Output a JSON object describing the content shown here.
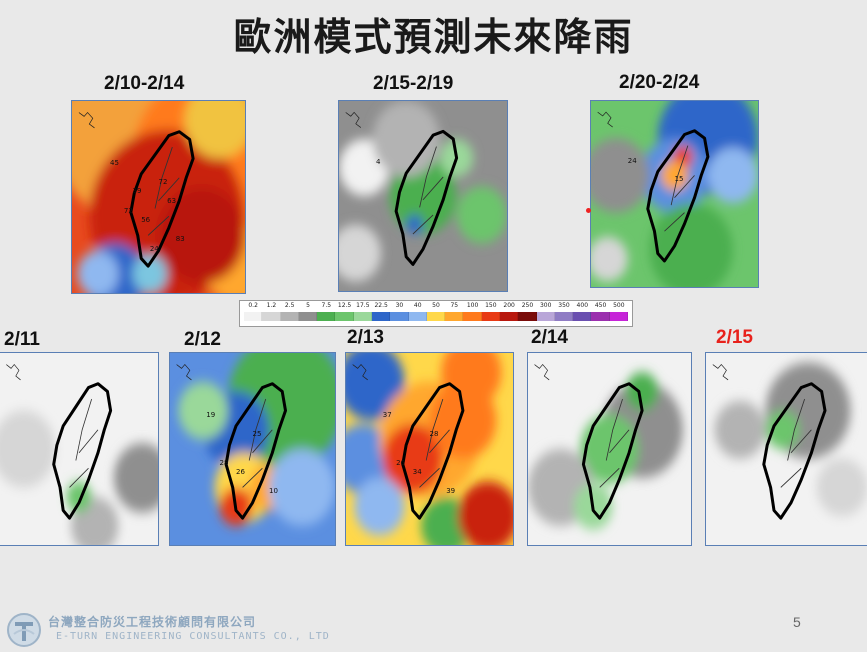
{
  "title": "歐洲模式預測未來降雨",
  "top_panels": [
    {
      "label": "2/10-2/14",
      "scheme": "heavy",
      "numbers": [
        "45",
        "72",
        "56",
        "72",
        "83",
        "24",
        "63",
        "39"
      ]
    },
    {
      "label": "2/15-2/19",
      "scheme": "dry",
      "numbers": [
        "4"
      ]
    },
    {
      "label": "2/20-2/24",
      "scheme": "north",
      "numbers": [
        "24",
        "15"
      ]
    }
  ],
  "daily_panels": [
    {
      "label": "2/11",
      "scheme": "dry2",
      "highlight": false,
      "numbers": []
    },
    {
      "label": "2/12",
      "scheme": "mid",
      "highlight": false,
      "numbers": [
        "19",
        "25",
        "26",
        "28",
        "10"
      ]
    },
    {
      "label": "2/13",
      "scheme": "heavy2",
      "highlight": false,
      "numbers": [
        "37",
        "28",
        "34",
        "26",
        "39"
      ]
    },
    {
      "label": "2/14",
      "scheme": "light",
      "highlight": false,
      "numbers": []
    },
    {
      "label": "2/15",
      "scheme": "dry3",
      "highlight": true,
      "numbers": []
    }
  ],
  "colorbar": {
    "ticks": [
      "0.2",
      "1.2",
      "2.5",
      "5",
      "7.5",
      "12.5",
      "17.5",
      "22.5",
      "30",
      "40",
      "50",
      "75",
      "100",
      "150",
      "200",
      "250",
      "300",
      "350",
      "400",
      "450",
      "500"
    ],
    "colors": [
      "#f2f2f2",
      "#d6d6d6",
      "#b3b3b3",
      "#8f8f8f",
      "#4caf50",
      "#6cc56c",
      "#9ad89a",
      "#2e66c9",
      "#5b8fe0",
      "#8fb8f0",
      "#ffd84a",
      "#ffa72e",
      "#ff7a1c",
      "#e83a14",
      "#b8180e",
      "#7a0c0a",
      "#b9a6d8",
      "#8f7cc4",
      "#6a4fb0",
      "#9b2fae",
      "#c624d8"
    ]
  },
  "colors": {
    "title": "#1a1a1a",
    "highlight_label": "#e8221c",
    "map_border": "#5a7fb5"
  },
  "footer": {
    "company_cn": "台灣整合防災工程技術顧問有限公司",
    "company_en": "E-TURN ENGINEERING CONSULTANTS CO., LTD",
    "page_number": "5",
    "logo_icon": "eturn-logo-icon"
  }
}
